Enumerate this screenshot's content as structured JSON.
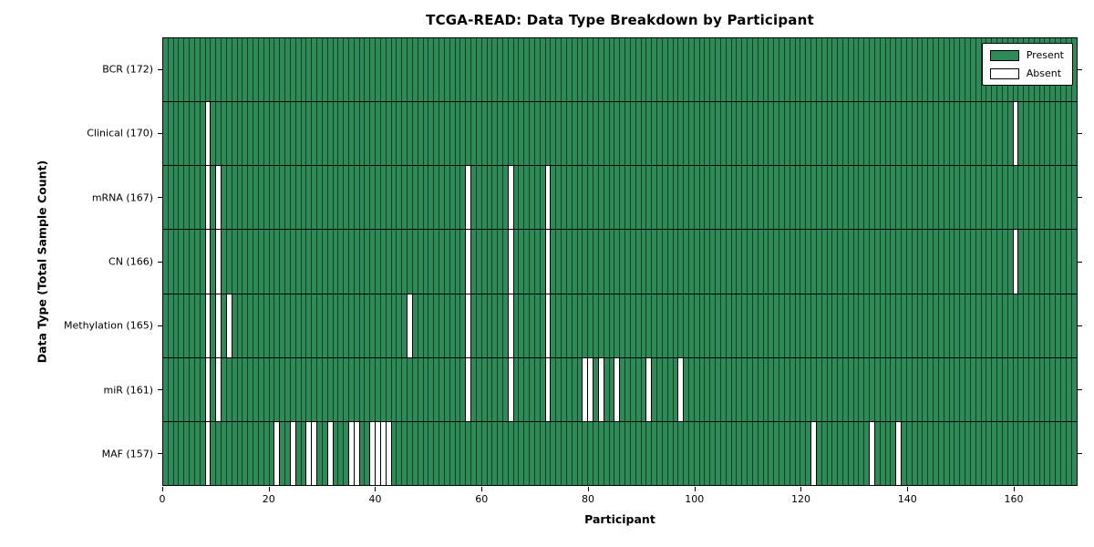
{
  "title": "TCGA-READ: Data Type Breakdown by Participant",
  "xlabel": "Participant",
  "ylabel": "Data Type (Total Sample Count)",
  "legend": {
    "present_label": "Present",
    "absent_label": "Absent"
  },
  "colors": {
    "present": "#2E8B57",
    "absent": "#FFFFFF",
    "edge": "#000000",
    "background": "#FFFFFF"
  },
  "chart_data": {
    "type": "heatmap",
    "title": "TCGA-READ: Data Type Breakdown by Participant",
    "xlabel": "Participant",
    "ylabel": "Data Type (Total Sample Count)",
    "legend_entries": [
      "Present",
      "Absent"
    ],
    "legend_position": "upper right",
    "grid": false,
    "x_range": [
      0,
      172
    ],
    "x_ticks": [
      0,
      20,
      40,
      60,
      80,
      100,
      120,
      140,
      160
    ],
    "total_participants": 172,
    "cell_values": {
      "present": 1,
      "absent": 0
    },
    "rows": [
      {
        "label": "BCR (172)",
        "name": "BCR",
        "present_count": 172,
        "absent_participants": []
      },
      {
        "label": "Clinical (170)",
        "name": "Clinical",
        "present_count": 170,
        "absent_participants": [
          8,
          160
        ]
      },
      {
        "label": "mRNA (167)",
        "name": "mRNA",
        "present_count": 167,
        "absent_participants": [
          8,
          10,
          57,
          65,
          72
        ]
      },
      {
        "label": "CN (166)",
        "name": "CN",
        "present_count": 166,
        "absent_participants": [
          8,
          10,
          57,
          65,
          72,
          160
        ]
      },
      {
        "label": "Methylation (165)",
        "name": "Methylation",
        "present_count": 165,
        "absent_participants": [
          8,
          10,
          12,
          46,
          57,
          65,
          72
        ]
      },
      {
        "label": "miR (161)",
        "name": "miR",
        "present_count": 161,
        "absent_participants": [
          8,
          10,
          57,
          65,
          72,
          79,
          80,
          82,
          85,
          91,
          97
        ]
      },
      {
        "label": "MAF (157)",
        "name": "MAF",
        "present_count": 157,
        "absent_participants": [
          8,
          21,
          24,
          27,
          28,
          31,
          35,
          36,
          39,
          40,
          41,
          42,
          122,
          133,
          138
        ]
      }
    ]
  }
}
